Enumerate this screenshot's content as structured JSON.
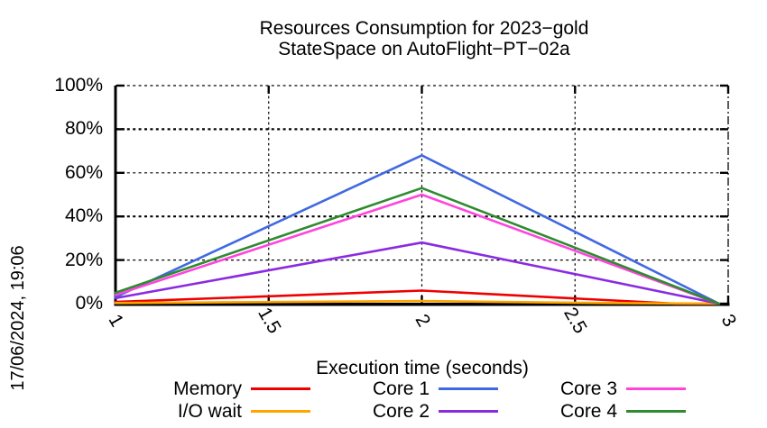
{
  "title": {
    "line1": "Resources Consumption for 2023−gold",
    "line2": "StateSpace on AutoFlight−PT−02a"
  },
  "date_label": "17/06/2024, 19:06",
  "chart_data": {
    "type": "line",
    "title": "Resources Consumption for 2023−gold StateSpace on AutoFlight−PT−02a",
    "xlabel": "Execution time (seconds)",
    "ylabel": "",
    "xlim": [
      1,
      3
    ],
    "ylim": [
      0,
      100
    ],
    "x_ticks": [
      1,
      1.5,
      2,
      2.5,
      3
    ],
    "x_tick_labels": [
      "1",
      "1.5",
      "2",
      "2.5",
      "3"
    ],
    "y_ticks": [
      0,
      20,
      40,
      60,
      80,
      100
    ],
    "y_tick_labels": [
      "0%",
      "20%",
      "40%",
      "60%",
      "80%",
      "100%"
    ],
    "grid": true,
    "legend_position": "bottom",
    "series": [
      {
        "name": "Memory",
        "color": "#ee0000",
        "points": [
          [
            1,
            0.8
          ],
          [
            2,
            6
          ],
          [
            2.83,
            0
          ],
          [
            2.97,
            0
          ]
        ]
      },
      {
        "name": "I/O wait",
        "color": "#ffa500",
        "points": [
          [
            1,
            0.3
          ],
          [
            2,
            1.2
          ],
          [
            2.6,
            0.3
          ],
          [
            2.97,
            0
          ]
        ]
      },
      {
        "name": "Core 1",
        "color": "#4169e1",
        "points": [
          [
            1,
            3
          ],
          [
            2,
            68
          ],
          [
            2.97,
            0
          ]
        ]
      },
      {
        "name": "Core 2",
        "color": "#8a2be2",
        "points": [
          [
            1,
            2.5
          ],
          [
            2,
            28
          ],
          [
            2.97,
            0
          ]
        ]
      },
      {
        "name": "Core 3",
        "color": "#ff44dd",
        "points": [
          [
            1,
            4
          ],
          [
            2,
            50
          ],
          [
            2.97,
            0
          ]
        ]
      },
      {
        "name": "Core 4",
        "color": "#2e8b2e",
        "points": [
          [
            1,
            5
          ],
          [
            2,
            53
          ],
          [
            2.97,
            0
          ]
        ]
      }
    ]
  }
}
